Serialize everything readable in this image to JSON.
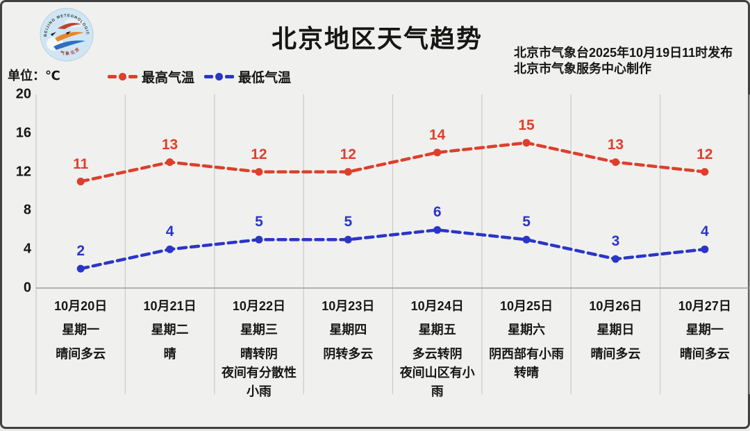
{
  "header": {
    "title": "北京地区天气趋势",
    "publisher_line1": "北京市气象台2025年10月19日11时发布",
    "publisher_line2": "北京市气象服务中心制作",
    "unit_label": "单位：℃",
    "logo_name": "beijing-meteorological-service-logo"
  },
  "legend": [
    {
      "label": "最高气温",
      "color": "#dd3f2b"
    },
    {
      "label": "最低气温",
      "color": "#2a35c8"
    }
  ],
  "colors": {
    "background": "#f0f0ee",
    "frame_border": "#3f3f3f",
    "gridline": "#c9c9c9",
    "axis_line": "#9e9e9e",
    "text": "#161616",
    "high_series": "#dd3f2b",
    "low_series": "#2a35c8"
  },
  "chart_data": {
    "type": "line",
    "title": "北京地区天气趋势",
    "ylabel": "℃",
    "ylim": [
      0,
      20
    ],
    "yticks": [
      0,
      4,
      8,
      12,
      16,
      20
    ],
    "grid": "vertical-only",
    "line_style": "dashed-with-dots",
    "legend_position": "top-left",
    "categories": [
      {
        "date": "10月20日",
        "weekday": "星期一",
        "weather": "晴间多云"
      },
      {
        "date": "10月21日",
        "weekday": "星期二",
        "weather": "晴"
      },
      {
        "date": "10月22日",
        "weekday": "星期三",
        "weather": "晴转阴\n夜间有分散性\n小雨"
      },
      {
        "date": "10月23日",
        "weekday": "星期四",
        "weather": "阴转多云"
      },
      {
        "date": "10月24日",
        "weekday": "星期五",
        "weather": "多云转阴\n夜间山区有小\n雨"
      },
      {
        "date": "10月25日",
        "weekday": "星期六",
        "weather": "阴西部有小雨\n转晴"
      },
      {
        "date": "10月26日",
        "weekday": "星期日",
        "weather": "晴间多云"
      },
      {
        "date": "10月27日",
        "weekday": "星期一",
        "weather": "晴间多云"
      }
    ],
    "series": [
      {
        "name": "最高气温",
        "color": "#dd3f2b",
        "values": [
          11,
          13,
          12,
          12,
          14,
          15,
          13,
          12
        ]
      },
      {
        "name": "最低气温",
        "color": "#2a35c8",
        "values": [
          2,
          4,
          5,
          5,
          6,
          5,
          3,
          4
        ]
      }
    ]
  }
}
